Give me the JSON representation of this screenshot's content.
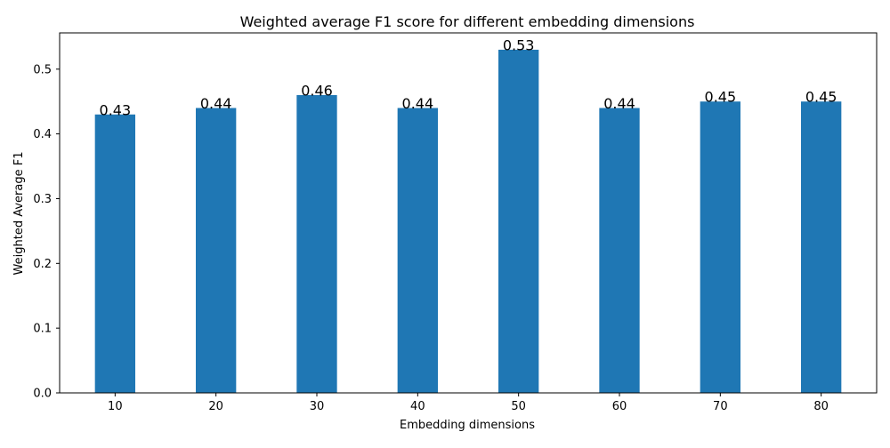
{
  "chart_data": {
    "type": "bar",
    "title": "Weighted average F1 score for different embedding dimensions",
    "xlabel": "Embedding dimensions",
    "ylabel": "Weighted Average F1",
    "categories": [
      "10",
      "20",
      "30",
      "40",
      "50",
      "60",
      "70",
      "80"
    ],
    "values": [
      0.43,
      0.44,
      0.46,
      0.44,
      0.53,
      0.44,
      0.45,
      0.45
    ],
    "data_labels": [
      "0.43",
      "0.44",
      "0.46",
      "0.44",
      "0.53",
      "0.44",
      "0.45",
      "0.45"
    ],
    "ylim": [
      0,
      0.556
    ],
    "yticks": [
      0.0,
      0.1,
      0.2,
      0.3,
      0.4,
      0.5
    ],
    "ytick_labels": [
      "0.0",
      "0.1",
      "0.2",
      "0.3",
      "0.4",
      "0.5"
    ],
    "grid": false,
    "legend": "none",
    "bar_color": "#1f77b4"
  }
}
